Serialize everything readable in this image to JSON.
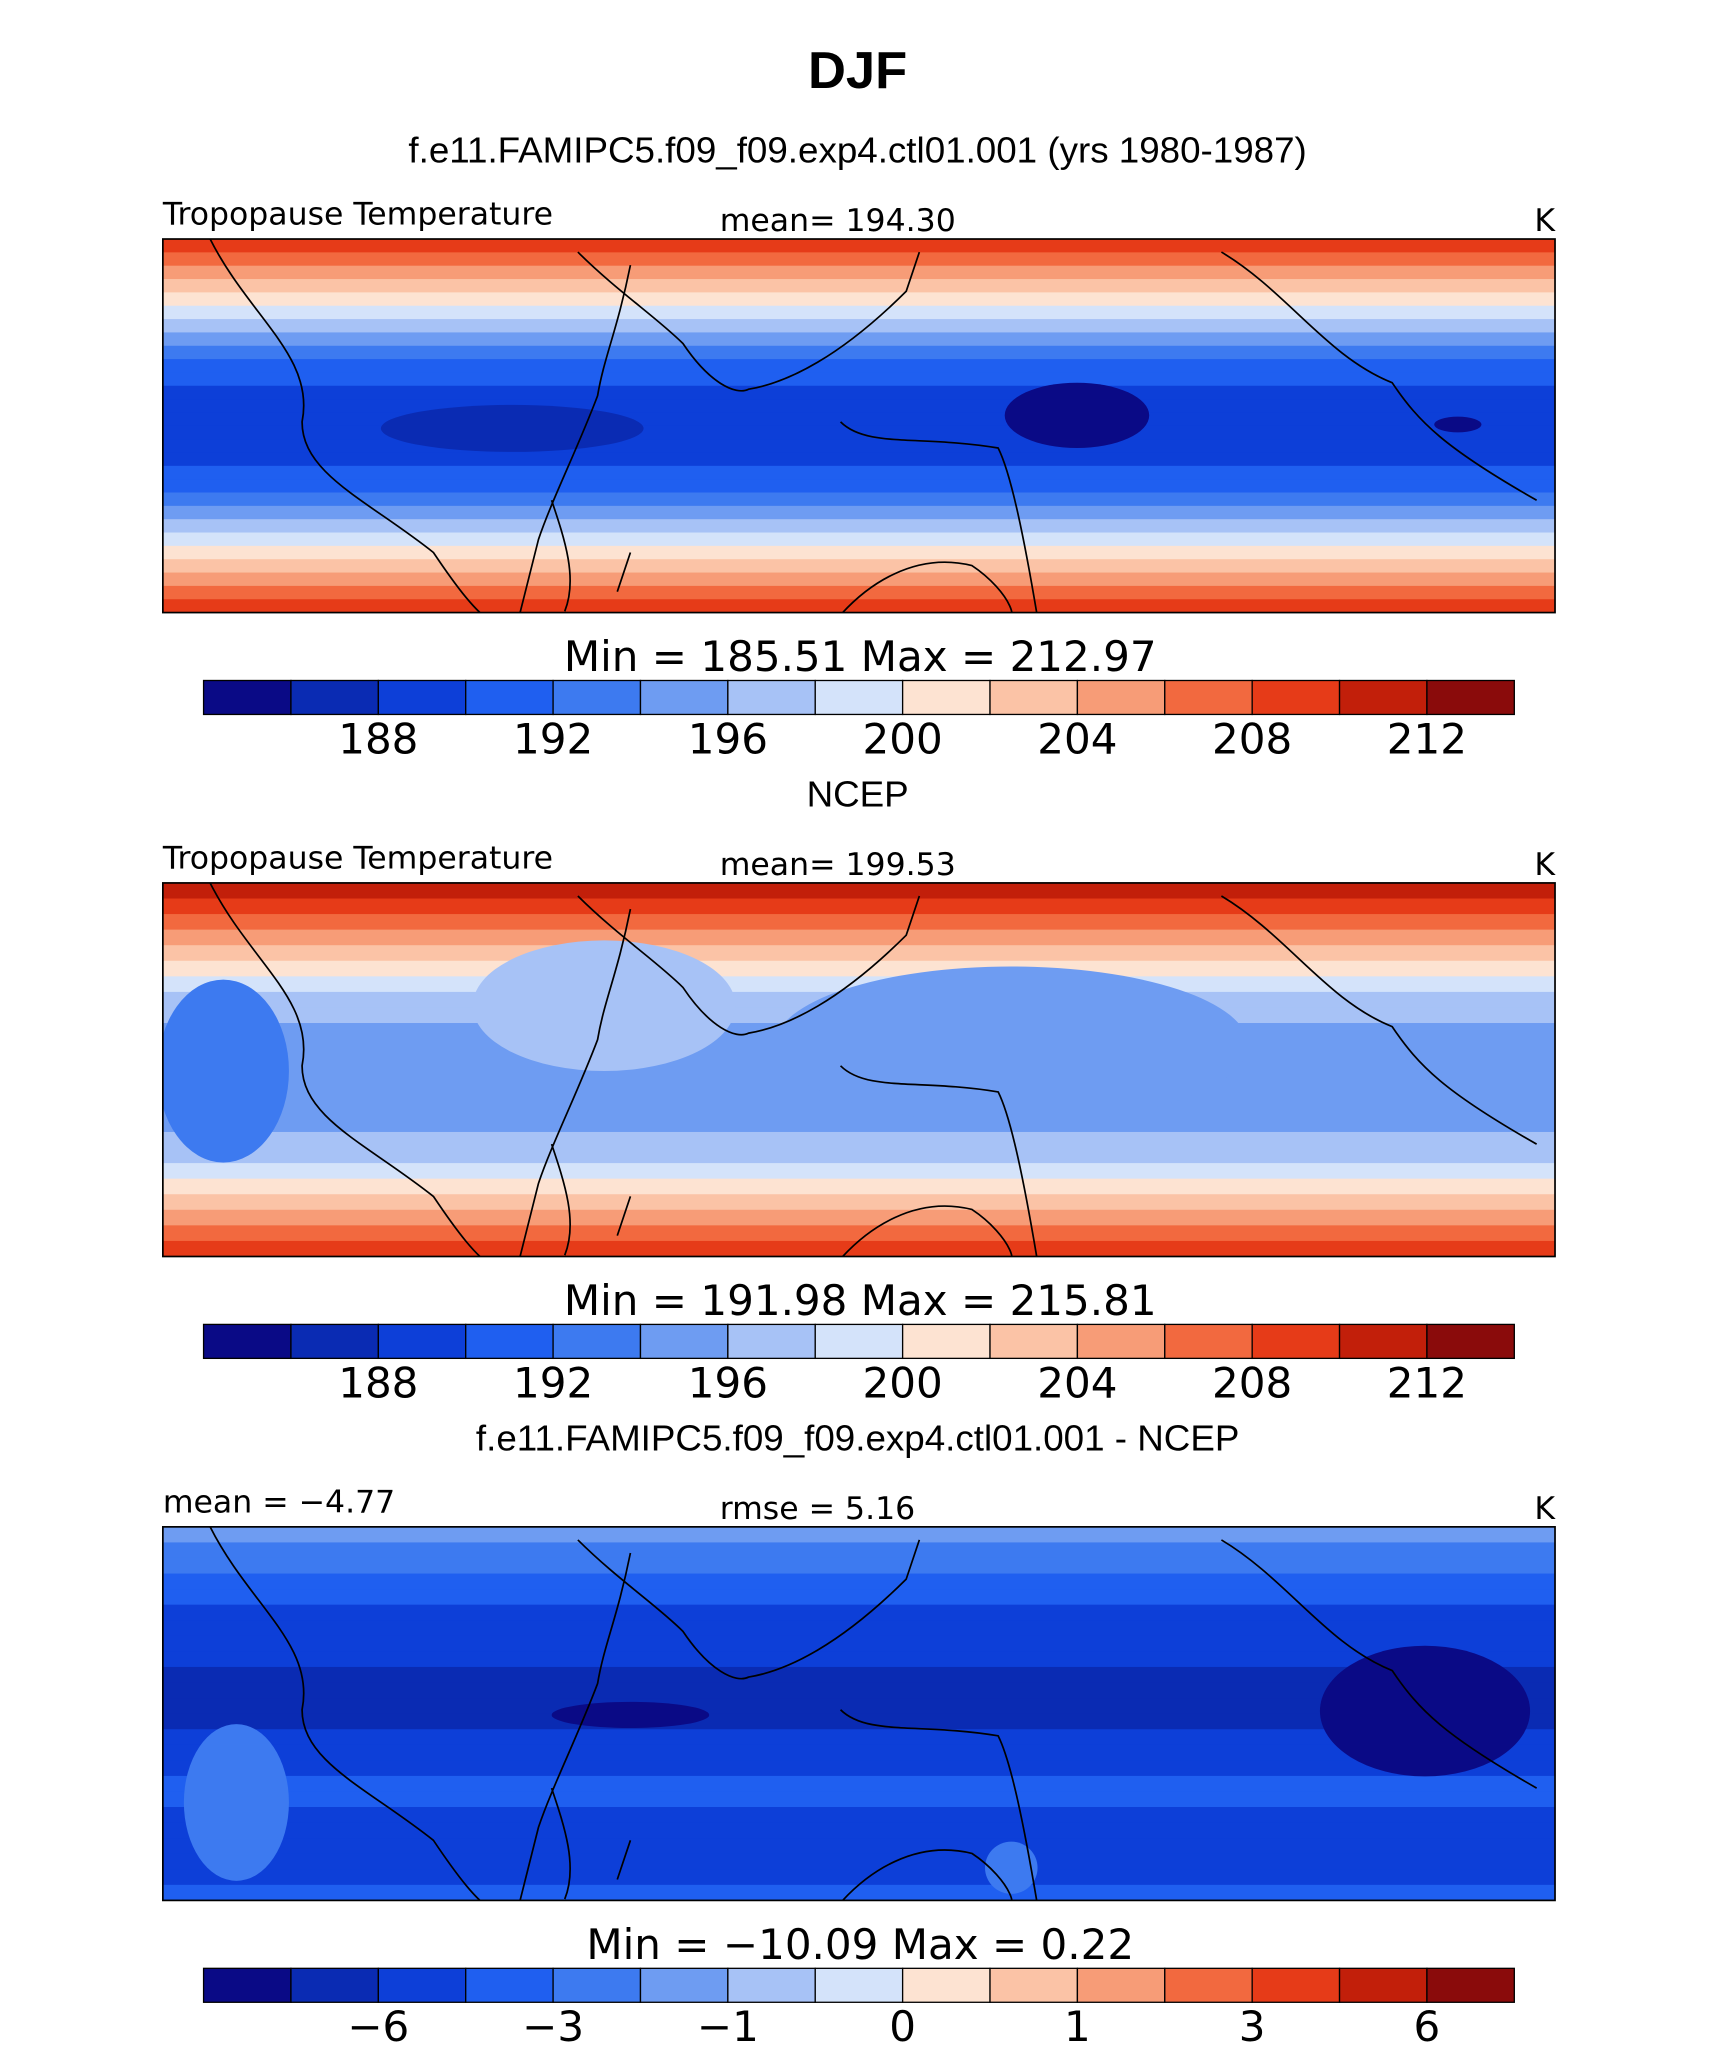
{
  "title": "DJF",
  "panels": [
    {
      "heading": "f.e11.FAMIPC5.f09_f09.exp4.ctl01.001 (yrs 1980-1987)",
      "left": "Tropopause Temperature",
      "center": "mean=  194.30",
      "right": "K",
      "minmax": "Min =  185.51  Max =  212.97",
      "colorbar": {
        "colors": [
          "#0a0a86",
          "#0a2bb3",
          "#0d3fd8",
          "#1f5ff0",
          "#3d7af0",
          "#6e9cf2",
          "#a7c2f6",
          "#d4e3fa",
          "#fde3d2",
          "#fbc3a6",
          "#f79c77",
          "#f2693f",
          "#e63b18",
          "#c21f0a",
          "#8a0b0b"
        ],
        "ticks": [
          "188",
          "192",
          "196",
          "200",
          "204",
          "208",
          "212"
        ]
      }
    },
    {
      "heading": "NCEP",
      "left": "Tropopause Temperature",
      "center": "mean=  199.53",
      "right": "K",
      "minmax": "Min =  191.98  Max =  215.81",
      "colorbar": {
        "colors": [
          "#0a0a86",
          "#0a2bb3",
          "#0d3fd8",
          "#1f5ff0",
          "#3d7af0",
          "#6e9cf2",
          "#a7c2f6",
          "#d4e3fa",
          "#fde3d2",
          "#fbc3a6",
          "#f79c77",
          "#f2693f",
          "#e63b18",
          "#c21f0a",
          "#8a0b0b"
        ],
        "ticks": [
          "188",
          "192",
          "196",
          "200",
          "204",
          "208",
          "212"
        ]
      }
    },
    {
      "heading": "f.e11.FAMIPC5.f09_f09.exp4.ctl01.001 - NCEP",
      "left": "mean =   −4.77",
      "center": "rmse =    5.16",
      "right": "K",
      "minmax": "Min =  −10.09  Max =     0.22",
      "colorbar": {
        "colors": [
          "#0a0a86",
          "#0a2bb3",
          "#0d3fd8",
          "#1f5ff0",
          "#3d7af0",
          "#6e9cf2",
          "#a7c2f6",
          "#d4e3fa",
          "#fde3d2",
          "#fbc3a6",
          "#f79c77",
          "#f2693f",
          "#e63b18",
          "#c21f0a",
          "#8a0b0b"
        ],
        "ticks": [
          "−6",
          "−3",
          "−1",
          "0",
          "1",
          "3",
          "6"
        ]
      }
    }
  ]
}
